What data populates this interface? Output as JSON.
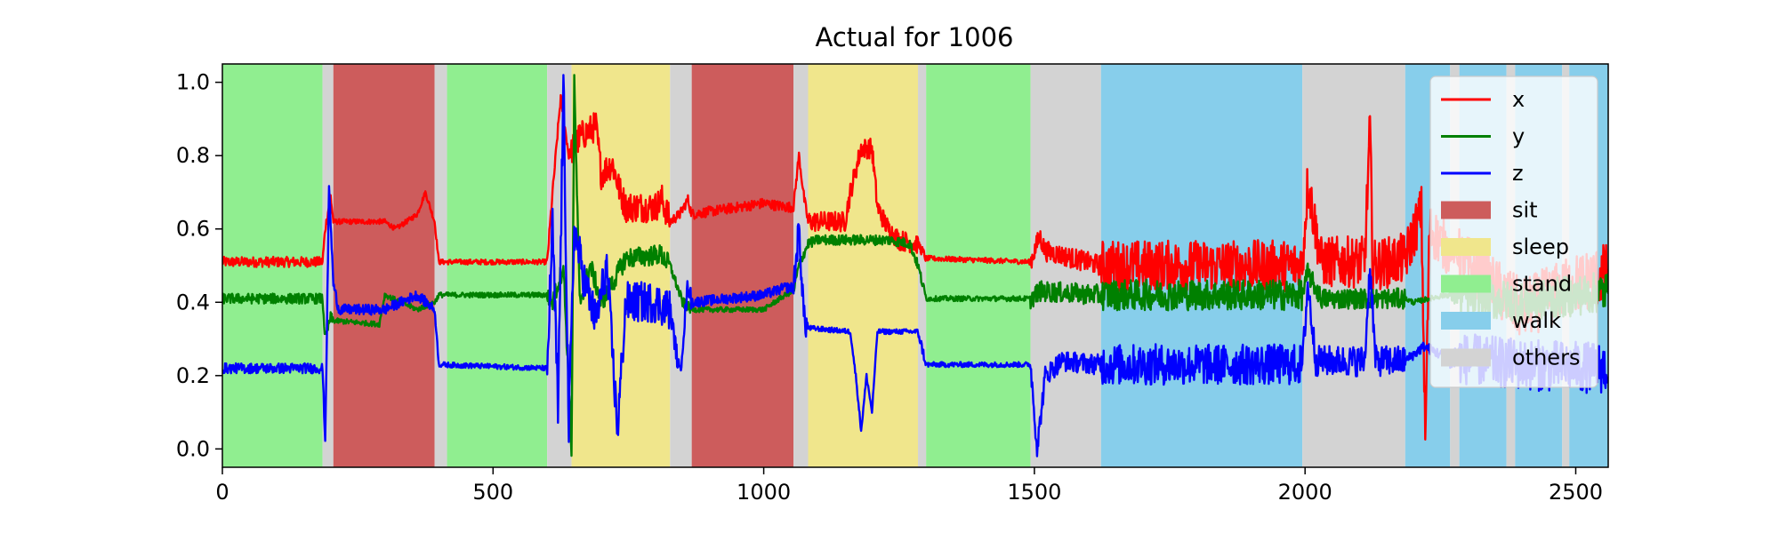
{
  "chart_data": {
    "type": "line",
    "title": "Actual for 1006",
    "xlabel": "",
    "ylabel": "",
    "xlim": [
      0,
      2560
    ],
    "ylim": [
      -0.05,
      1.05
    ],
    "x_ticks": [
      0,
      500,
      1000,
      1500,
      2000,
      2500
    ],
    "x_tick_labels": [
      "0",
      "500",
      "1000",
      "1500",
      "2000",
      "2500"
    ],
    "y_ticks": [
      0.0,
      0.2,
      0.4,
      0.6,
      0.8,
      1.0
    ],
    "y_tick_labels": [
      "0.0",
      "0.2",
      "0.4",
      "0.6",
      "0.8",
      "1.0"
    ],
    "grid": false,
    "legend_position": "top-right",
    "colors": {
      "x": "#ff0000",
      "y": "#008000",
      "z": "#0000ff",
      "sit": "#cd5c5c",
      "sleep": "#f0e68c",
      "stand": "#90ee90",
      "walk": "#87ceeb",
      "others": "#d3d3d3"
    },
    "activity_legend": [
      "sit",
      "sleep",
      "stand",
      "walk",
      "others"
    ],
    "activity_segments": [
      {
        "start": 0,
        "end": 185,
        "label": "stand"
      },
      {
        "start": 185,
        "end": 205,
        "label": "others"
      },
      {
        "start": 205,
        "end": 392,
        "label": "sit"
      },
      {
        "start": 392,
        "end": 415,
        "label": "others"
      },
      {
        "start": 415,
        "end": 600,
        "label": "stand"
      },
      {
        "start": 600,
        "end": 645,
        "label": "others"
      },
      {
        "start": 645,
        "end": 827,
        "label": "sleep"
      },
      {
        "start": 827,
        "end": 867,
        "label": "others"
      },
      {
        "start": 867,
        "end": 1055,
        "label": "sit"
      },
      {
        "start": 1055,
        "end": 1082,
        "label": "others"
      },
      {
        "start": 1082,
        "end": 1285,
        "label": "sleep"
      },
      {
        "start": 1285,
        "end": 1300,
        "label": "others"
      },
      {
        "start": 1300,
        "end": 1493,
        "label": "stand"
      },
      {
        "start": 1493,
        "end": 1623,
        "label": "others"
      },
      {
        "start": 1623,
        "end": 1995,
        "label": "walk"
      },
      {
        "start": 1995,
        "end": 2185,
        "label": "others"
      },
      {
        "start": 2185,
        "end": 2268,
        "label": "walk"
      },
      {
        "start": 2268,
        "end": 2285,
        "label": "others"
      },
      {
        "start": 2285,
        "end": 2372,
        "label": "walk"
      },
      {
        "start": 2372,
        "end": 2388,
        "label": "others"
      },
      {
        "start": 2388,
        "end": 2475,
        "label": "walk"
      },
      {
        "start": 2475,
        "end": 2488,
        "label": "others"
      },
      {
        "start": 2488,
        "end": 2560,
        "label": "walk"
      }
    ],
    "series": [
      {
        "name": "x",
        "noise": [
          0.01,
          0.01,
          0.005,
          0.005,
          0.005,
          0.01,
          0.03,
          0.01,
          0.01,
          0.01,
          0.02,
          0.01,
          0.005,
          0.02,
          0.05,
          0.05,
          0.05,
          0.02,
          0.06,
          0.06,
          0.06,
          0.06,
          0.06
        ],
        "points": [
          [
            0,
            0.51
          ],
          [
            185,
            0.51
          ],
          [
            190,
            0.6
          ],
          [
            200,
            0.69
          ],
          [
            205,
            0.62
          ],
          [
            300,
            0.62
          ],
          [
            320,
            0.6
          ],
          [
            360,
            0.64
          ],
          [
            375,
            0.7
          ],
          [
            392,
            0.62
          ],
          [
            400,
            0.51
          ],
          [
            600,
            0.51
          ],
          [
            610,
            0.7
          ],
          [
            625,
            0.96
          ],
          [
            640,
            0.8
          ],
          [
            660,
            0.85
          ],
          [
            690,
            0.88
          ],
          [
            700,
            0.75
          ],
          [
            720,
            0.78
          ],
          [
            735,
            0.7
          ],
          [
            745,
            0.66
          ],
          [
            800,
            0.66
          ],
          [
            812,
            0.68
          ],
          [
            827,
            0.62
          ],
          [
            845,
            0.64
          ],
          [
            860,
            0.68
          ],
          [
            867,
            0.64
          ],
          [
            1000,
            0.67
          ],
          [
            1040,
            0.66
          ],
          [
            1055,
            0.66
          ],
          [
            1065,
            0.8
          ],
          [
            1075,
            0.68
          ],
          [
            1082,
            0.62
          ],
          [
            1120,
            0.62
          ],
          [
            1150,
            0.62
          ],
          [
            1160,
            0.7
          ],
          [
            1180,
            0.82
          ],
          [
            1200,
            0.82
          ],
          [
            1210,
            0.66
          ],
          [
            1230,
            0.6
          ],
          [
            1250,
            0.57
          ],
          [
            1280,
            0.56
          ],
          [
            1285,
            0.56
          ],
          [
            1300,
            0.52
          ],
          [
            1493,
            0.51
          ],
          [
            1510,
            0.58
          ],
          [
            1520,
            0.54
          ],
          [
            1623,
            0.5
          ],
          [
            1900,
            0.5
          ],
          [
            1995,
            0.5
          ],
          [
            2005,
            0.73
          ],
          [
            2015,
            0.64
          ],
          [
            2030,
            0.51
          ],
          [
            2110,
            0.51
          ],
          [
            2120,
            0.88
          ],
          [
            2125,
            0.5
          ],
          [
            2185,
            0.52
          ],
          [
            2215,
            0.65
          ],
          [
            2222,
            0.02
          ],
          [
            2230,
            0.6
          ],
          [
            2260,
            0.55
          ],
          [
            2300,
            0.5
          ],
          [
            2400,
            0.38
          ],
          [
            2500,
            0.45
          ],
          [
            2560,
            0.48
          ]
        ]
      },
      {
        "name": "y",
        "noise": [
          0.01,
          0.01,
          0.005,
          0.005,
          0.005,
          0.02,
          0.02,
          0.01,
          0.005,
          0.01,
          0.01,
          0.01,
          0.005,
          0.02,
          0.03,
          0.02,
          0.005,
          0.02,
          0.04,
          0.04,
          0.04,
          0.04,
          0.04
        ],
        "points": [
          [
            0,
            0.41
          ],
          [
            185,
            0.41
          ],
          [
            190,
            0.3
          ],
          [
            200,
            0.36
          ],
          [
            205,
            0.35
          ],
          [
            290,
            0.34
          ],
          [
            300,
            0.42
          ],
          [
            330,
            0.4
          ],
          [
            360,
            0.38
          ],
          [
            392,
            0.4
          ],
          [
            400,
            0.42
          ],
          [
            600,
            0.42
          ],
          [
            610,
            0.4
          ],
          [
            630,
            0.5
          ],
          [
            645,
            0.0
          ],
          [
            650,
            1.0
          ],
          [
            660,
            0.4
          ],
          [
            680,
            0.5
          ],
          [
            700,
            0.4
          ],
          [
            720,
            0.45
          ],
          [
            745,
            0.52
          ],
          [
            810,
            0.53
          ],
          [
            827,
            0.5
          ],
          [
            850,
            0.4
          ],
          [
            867,
            0.38
          ],
          [
            1000,
            0.38
          ],
          [
            1040,
            0.42
          ],
          [
            1055,
            0.43
          ],
          [
            1065,
            0.5
          ],
          [
            1082,
            0.56
          ],
          [
            1100,
            0.57
          ],
          [
            1200,
            0.57
          ],
          [
            1230,
            0.57
          ],
          [
            1270,
            0.56
          ],
          [
            1285,
            0.5
          ],
          [
            1300,
            0.41
          ],
          [
            1493,
            0.41
          ],
          [
            1510,
            0.43
          ],
          [
            1623,
            0.42
          ],
          [
            1995,
            0.42
          ],
          [
            2005,
            0.48
          ],
          [
            2030,
            0.41
          ],
          [
            2185,
            0.41
          ],
          [
            2200,
            0.4
          ],
          [
            2260,
            0.42
          ],
          [
            2400,
            0.4
          ],
          [
            2560,
            0.43
          ]
        ]
      },
      {
        "name": "z",
        "noise": [
          0.01,
          0.01,
          0.01,
          0.005,
          0.005,
          0.05,
          0.04,
          0.02,
          0.01,
          0.03,
          0.005,
          0.01,
          0.005,
          0.02,
          0.04,
          0.03,
          0.01,
          0.03,
          0.05,
          0.05,
          0.05,
          0.05,
          0.05
        ],
        "points": [
          [
            0,
            0.22
          ],
          [
            185,
            0.22
          ],
          [
            190,
            0.02
          ],
          [
            197,
            0.72
          ],
          [
            205,
            0.45
          ],
          [
            215,
            0.38
          ],
          [
            300,
            0.38
          ],
          [
            330,
            0.4
          ],
          [
            360,
            0.42
          ],
          [
            392,
            0.38
          ],
          [
            400,
            0.23
          ],
          [
            600,
            0.22
          ],
          [
            610,
            0.6
          ],
          [
            620,
            0.1
          ],
          [
            630,
            1.0
          ],
          [
            640,
            0.05
          ],
          [
            650,
            0.6
          ],
          [
            670,
            0.45
          ],
          [
            690,
            0.35
          ],
          [
            710,
            0.5
          ],
          [
            730,
            0.05
          ],
          [
            745,
            0.4
          ],
          [
            800,
            0.4
          ],
          [
            827,
            0.38
          ],
          [
            845,
            0.2
          ],
          [
            860,
            0.45
          ],
          [
            867,
            0.4
          ],
          [
            1000,
            0.42
          ],
          [
            1040,
            0.44
          ],
          [
            1055,
            0.44
          ],
          [
            1065,
            0.6
          ],
          [
            1075,
            0.35
          ],
          [
            1082,
            0.33
          ],
          [
            1160,
            0.32
          ],
          [
            1170,
            0.2
          ],
          [
            1180,
            0.05
          ],
          [
            1190,
            0.2
          ],
          [
            1200,
            0.1
          ],
          [
            1210,
            0.32
          ],
          [
            1280,
            0.32
          ],
          [
            1285,
            0.32
          ],
          [
            1300,
            0.23
          ],
          [
            1493,
            0.23
          ],
          [
            1505,
            0.0
          ],
          [
            1520,
            0.2
          ],
          [
            1550,
            0.24
          ],
          [
            1623,
            0.23
          ],
          [
            1995,
            0.23
          ],
          [
            2005,
            0.45
          ],
          [
            2020,
            0.24
          ],
          [
            2110,
            0.24
          ],
          [
            2120,
            0.5
          ],
          [
            2130,
            0.24
          ],
          [
            2185,
            0.24
          ],
          [
            2220,
            0.28
          ],
          [
            2260,
            0.25
          ],
          [
            2400,
            0.23
          ],
          [
            2560,
            0.22
          ]
        ]
      }
    ]
  }
}
